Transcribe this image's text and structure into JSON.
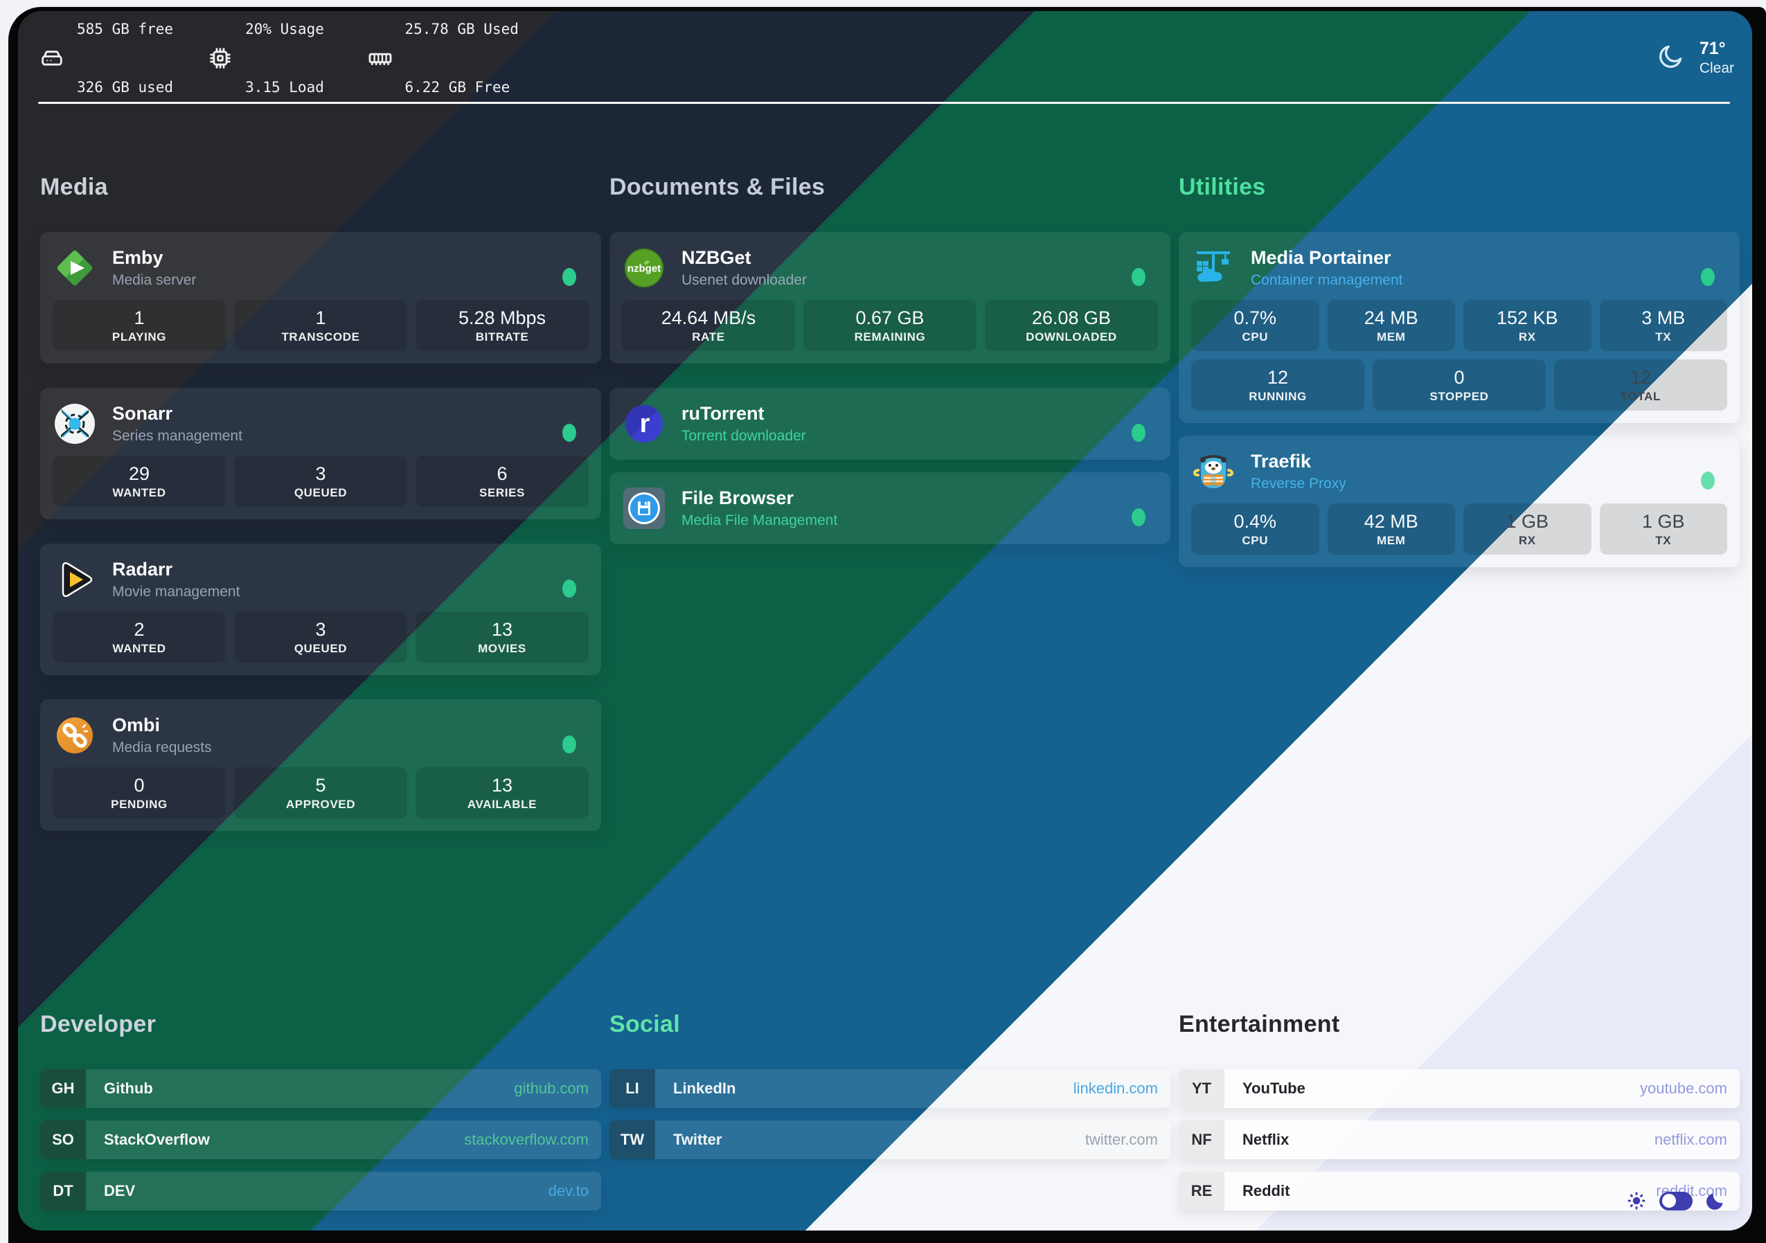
{
  "system_bar": {
    "disk": {
      "icon": "hdd-icon",
      "line1": "585 GB free",
      "line2": "326 GB used"
    },
    "cpu": {
      "icon": "cpu-icon",
      "line1": "20% Usage",
      "line2": "3.15 Load"
    },
    "memory": {
      "icon": "ram-icon",
      "line1": "25.78 GB Used",
      "line2": "6.22 GB Free"
    },
    "weather": {
      "icon": "moon-icon",
      "temp": "71°",
      "condition": "Clear"
    }
  },
  "colors": {
    "status_dot": "#2bcc8e",
    "divider": "#fafafa",
    "bands": [
      "#27282c",
      "#1d2636",
      "#0c6046",
      "#15618f",
      "#f4f6f9",
      "#e9ebf8"
    ],
    "toggle_accent": "#3e3eb0"
  },
  "sections": [
    {
      "id": "media",
      "kind": "apps",
      "title": "Media",
      "title_color": "#ccd1d9",
      "column": 1,
      "row": "top",
      "apps": [
        {
          "name": "Emby",
          "desc": "Media server",
          "icon": "emby-icon",
          "desc_color": "#97a2b2",
          "stats": [
            {
              "value": "1",
              "label": "PLAYING"
            },
            {
              "value": "1",
              "label": "TRANSCODE"
            },
            {
              "value": "5.28 Mbps",
              "label": "BITRATE"
            }
          ]
        },
        {
          "name": "Sonarr",
          "desc": "Series management",
          "icon": "sonarr-icon",
          "desc_color": "#97a2b2",
          "stats": [
            {
              "value": "29",
              "label": "WANTED"
            },
            {
              "value": "3",
              "label": "QUEUED"
            },
            {
              "value": "6",
              "label": "SERIES"
            }
          ]
        },
        {
          "name": "Radarr",
          "desc": "Movie management",
          "icon": "radarr-icon",
          "desc_color": "#97a2b2",
          "stats": [
            {
              "value": "2",
              "label": "WANTED"
            },
            {
              "value": "3",
              "label": "QUEUED"
            },
            {
              "value": "13",
              "label": "MOVIES"
            }
          ]
        },
        {
          "name": "Ombi",
          "desc": "Media requests",
          "icon": "ombi-icon",
          "desc_color": "#97a2b2",
          "stats": [
            {
              "value": "0",
              "label": "PENDING"
            },
            {
              "value": "5",
              "label": "APPROVED"
            },
            {
              "value": "13",
              "label": "AVAILABLE"
            }
          ]
        }
      ]
    },
    {
      "id": "documents",
      "kind": "apps",
      "title": "Documents & Files",
      "title_color": "#c5cdd8",
      "column": 2,
      "row": "top",
      "apps": [
        {
          "name": "NZBGet",
          "desc": "Usenet downloader",
          "icon": "nzbget-icon",
          "desc_color": "#9aa8b4",
          "stats": [
            {
              "value": "24.64 MB/s",
              "label": "RATE"
            },
            {
              "value": "0.67 GB",
              "label": "REMAINING"
            },
            {
              "value": "26.08 GB",
              "label": "DOWNLOADED"
            }
          ]
        },
        {
          "name": "ruTorrent",
          "desc": "Torrent downloader",
          "icon": "rutorrent-icon",
          "desc_color": "#3fd49c",
          "tight": true,
          "stats": []
        },
        {
          "name": "File Browser",
          "desc": "Media File Management",
          "icon": "filebrowser-icon",
          "desc_color": "#3fd49c",
          "stats": []
        }
      ]
    },
    {
      "id": "utilities",
      "kind": "apps",
      "title": "Utilities",
      "title_color": "#4fdfa0",
      "column": 3,
      "row": "top",
      "apps": [
        {
          "name": "Media Portainer",
          "desc": "Container management",
          "icon": "portainer-icon",
          "desc_color": "#47b2ea",
          "tight": true,
          "stats": [
            {
              "value": "0.7%",
              "label": "CPU"
            },
            {
              "value": "24 MB",
              "label": "MEM"
            },
            {
              "value": "152 KB",
              "label": "RX"
            },
            {
              "value": "3 MB",
              "label": "TX"
            }
          ],
          "stats2": [
            {
              "value": "12",
              "label": "RUNNING"
            },
            {
              "value": "0",
              "label": "STOPPED"
            },
            {
              "value": "12",
              "label": "TOTAL",
              "dark": true
            }
          ]
        },
        {
          "name": "Traefik",
          "desc": "Reverse Proxy",
          "icon": "traefik-icon",
          "desc_color": "#47b2ea",
          "dot_color": "#66dfac",
          "stats": [
            {
              "value": "0.4%",
              "label": "CPU"
            },
            {
              "value": "42 MB",
              "label": "MEM"
            },
            {
              "value": "1 GB",
              "label": "RX",
              "dark": true
            },
            {
              "value": "1 GB",
              "label": "TX",
              "dark": true
            }
          ]
        }
      ]
    },
    {
      "id": "developer",
      "kind": "links",
      "title": "Developer",
      "title_color": "#ccd3dc",
      "column": 1,
      "row": "bot",
      "links": [
        {
          "tag": "GH",
          "name": "Github",
          "url": "github.com",
          "url_color": "#52c796"
        },
        {
          "tag": "SO",
          "name": "StackOverflow",
          "url": "stackoverflow.com",
          "url_color": "#52c796"
        },
        {
          "tag": "DT",
          "name": "DEV",
          "url": "dev.to",
          "url_color": "#4aa8e0"
        }
      ]
    },
    {
      "id": "social",
      "kind": "links",
      "title": "Social",
      "title_color": "#5fe4a8",
      "column": 2,
      "row": "bot",
      "links": [
        {
          "tag": "LI",
          "name": "LinkedIn",
          "url": "linkedin.com",
          "url_color": "#4aa8e0"
        },
        {
          "tag": "TW",
          "name": "Twitter",
          "url": "twitter.com",
          "url_color": "#9aa2ad"
        }
      ]
    },
    {
      "id": "entertainment",
      "kind": "links",
      "title": "Entertainment",
      "title_color": "#26262e",
      "light": true,
      "column": 3,
      "row": "bot",
      "links": [
        {
          "tag": "YT",
          "name": "YouTube",
          "url": "youtube.com",
          "url_color": "#9399dc"
        },
        {
          "tag": "NF",
          "name": "Netflix",
          "url": "netflix.com",
          "url_color": "#9399dc"
        },
        {
          "tag": "RE",
          "name": "Reddit",
          "url": "reddit.com",
          "url_color": "#9399dc"
        }
      ]
    }
  ],
  "toggles": {
    "sun": "sun-icon",
    "switch": "theme-toggle",
    "moon": "moon-filled-icon"
  }
}
